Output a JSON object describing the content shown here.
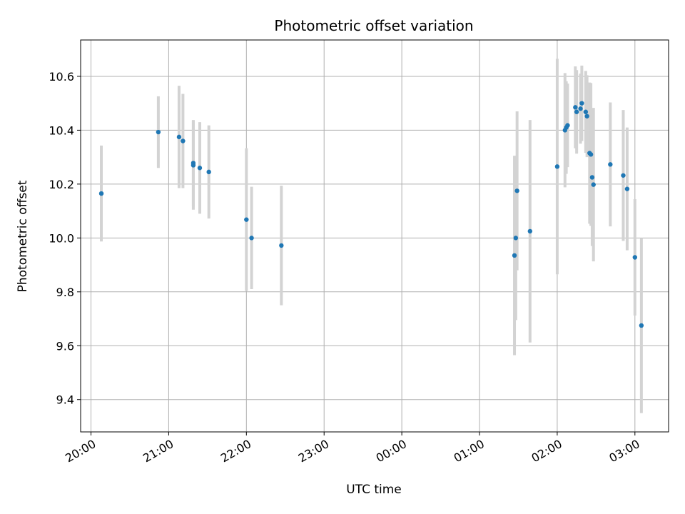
{
  "chart_data": {
    "type": "scatter",
    "title": "Photometric offset variation",
    "xlabel": "UTC time",
    "ylabel": "Photometric offset",
    "x_axis": "time",
    "x_ticks": [
      "20:00",
      "21:00",
      "22:00",
      "23:00",
      "00:00",
      "01:00",
      "02:00",
      "03:00"
    ],
    "y_ticks": [
      "9.4",
      "9.6",
      "9.8",
      "10.0",
      "10.2",
      "10.4",
      "10.6"
    ],
    "ylim": [
      9.28,
      10.735
    ],
    "xlim": [
      "19:52",
      "03:26"
    ],
    "grid": true,
    "point_color": "#1f77b4",
    "errorbar_color": "#d3d3d3",
    "points": [
      {
        "time": "20:08",
        "y": 10.165,
        "err": 0.178
      },
      {
        "time": "20:52",
        "y": 10.393,
        "err": 0.133
      },
      {
        "time": "21:08",
        "y": 10.375,
        "err": 0.19
      },
      {
        "time": "21:11",
        "y": 10.36,
        "err": 0.175
      },
      {
        "time": "21:19",
        "y": 10.278,
        "err": 0.16
      },
      {
        "time": "21:19",
        "y": 10.27,
        "err": 0.165
      },
      {
        "time": "21:24",
        "y": 10.26,
        "err": 0.17
      },
      {
        "time": "21:31",
        "y": 10.245,
        "err": 0.173
      },
      {
        "time": "22:00",
        "y": 10.068,
        "err": 0.265
      },
      {
        "time": "22:04",
        "y": 10.0,
        "err": 0.19
      },
      {
        "time": "22:27",
        "y": 9.972,
        "err": 0.222
      },
      {
        "time": "01:27",
        "y": 9.935,
        "err": 0.37
      },
      {
        "time": "01:28",
        "y": 10.0,
        "err": 0.305
      },
      {
        "time": "01:29",
        "y": 10.175,
        "err": 0.295
      },
      {
        "time": "01:39",
        "y": 10.025,
        "err": 0.413
      },
      {
        "time": "02:00",
        "y": 10.265,
        "err": 0.4
      },
      {
        "time": "02:06",
        "y": 10.4,
        "err": 0.212
      },
      {
        "time": "02:07",
        "y": 10.41,
        "err": 0.172
      },
      {
        "time": "02:08",
        "y": 10.418,
        "err": 0.155
      },
      {
        "time": "02:14",
        "y": 10.485,
        "err": 0.152
      },
      {
        "time": "02:15",
        "y": 10.468,
        "err": 0.155
      },
      {
        "time": "02:18",
        "y": 10.48,
        "err": 0.13
      },
      {
        "time": "02:19",
        "y": 10.5,
        "err": 0.14
      },
      {
        "time": "02:22",
        "y": 10.468,
        "err": 0.152
      },
      {
        "time": "02:23",
        "y": 10.452,
        "err": 0.152
      },
      {
        "time": "02:25",
        "y": 10.315,
        "err": 0.262
      },
      {
        "time": "02:26",
        "y": 10.31,
        "err": 0.265
      },
      {
        "time": "02:27",
        "y": 10.225,
        "err": 0.255
      },
      {
        "time": "02:28",
        "y": 10.198,
        "err": 0.285
      },
      {
        "time": "02:41",
        "y": 10.273,
        "err": 0.23
      },
      {
        "time": "02:51",
        "y": 10.232,
        "err": 0.243
      },
      {
        "time": "02:54",
        "y": 10.182,
        "err": 0.228
      },
      {
        "time": "03:00",
        "y": 9.928,
        "err": 0.216
      },
      {
        "time": "03:05",
        "y": 9.675,
        "err": 0.325
      }
    ]
  }
}
